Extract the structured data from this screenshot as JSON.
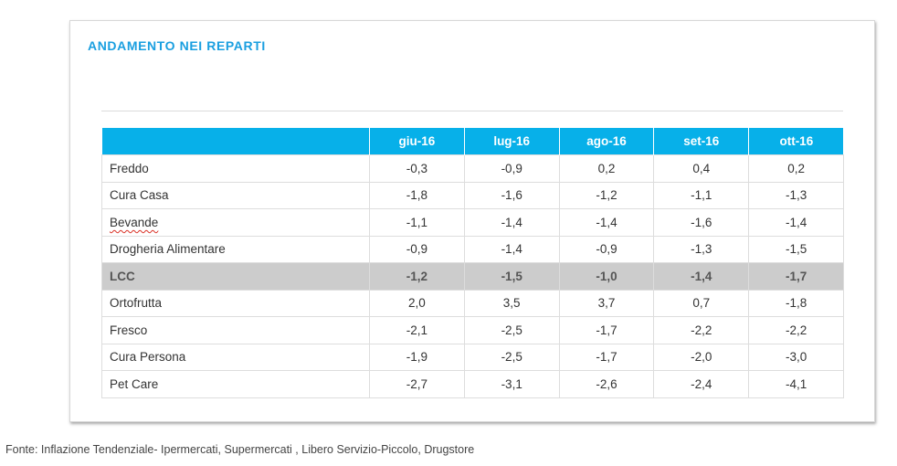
{
  "card": {
    "title": "ANDAMENTO NEI REPARTI"
  },
  "table": {
    "header_blank": "",
    "months": [
      "giu-16",
      "lug-16",
      "ago-16",
      "set-16",
      "ott-16"
    ],
    "rows": [
      {
        "label": "Freddo",
        "values": [
          "-0,3",
          "-0,9",
          "0,2",
          "0,4",
          "0,2"
        ]
      },
      {
        "label": "Cura Casa",
        "values": [
          "-1,8",
          "-1,6",
          "-1,2",
          "-1,1",
          "-1,3"
        ]
      },
      {
        "label": "Bevande",
        "values": [
          "-1,1",
          "-1,4",
          "-1,4",
          "-1,6",
          "-1,4"
        ]
      },
      {
        "label": "Drogheria Alimentare",
        "values": [
          "-0,9",
          "-1,4",
          "-0,9",
          "-1,3",
          "-1,5"
        ]
      },
      {
        "label": "LCC",
        "values": [
          "-1,2",
          "-1,5",
          "-1,0",
          "-1,4",
          "-1,7"
        ]
      },
      {
        "label": "Ortofrutta",
        "values": [
          "2,0",
          "3,5",
          "3,7",
          "0,7",
          "-1,8"
        ]
      },
      {
        "label": "Fresco",
        "values": [
          "-2,1",
          "-2,5",
          "-1,7",
          "-2,2",
          "-2,2"
        ]
      },
      {
        "label": "Cura Persona",
        "values": [
          "-1,9",
          "-2,5",
          "-1,7",
          "-2,0",
          "-3,0"
        ]
      },
      {
        "label": "Pet Care",
        "values": [
          "-2,7",
          "-3,1",
          "-2,6",
          "-2,4",
          "-4,1"
        ]
      }
    ]
  },
  "source": "Fonte: Inflazione Tendenziale- Ipermercati, Supermercati , Libero Servizio-Piccolo, Drugstore",
  "colors": {
    "title": "#1a9fe0",
    "header_bg": "#07b0e9",
    "highlight_row_bg": "#cccccc"
  }
}
